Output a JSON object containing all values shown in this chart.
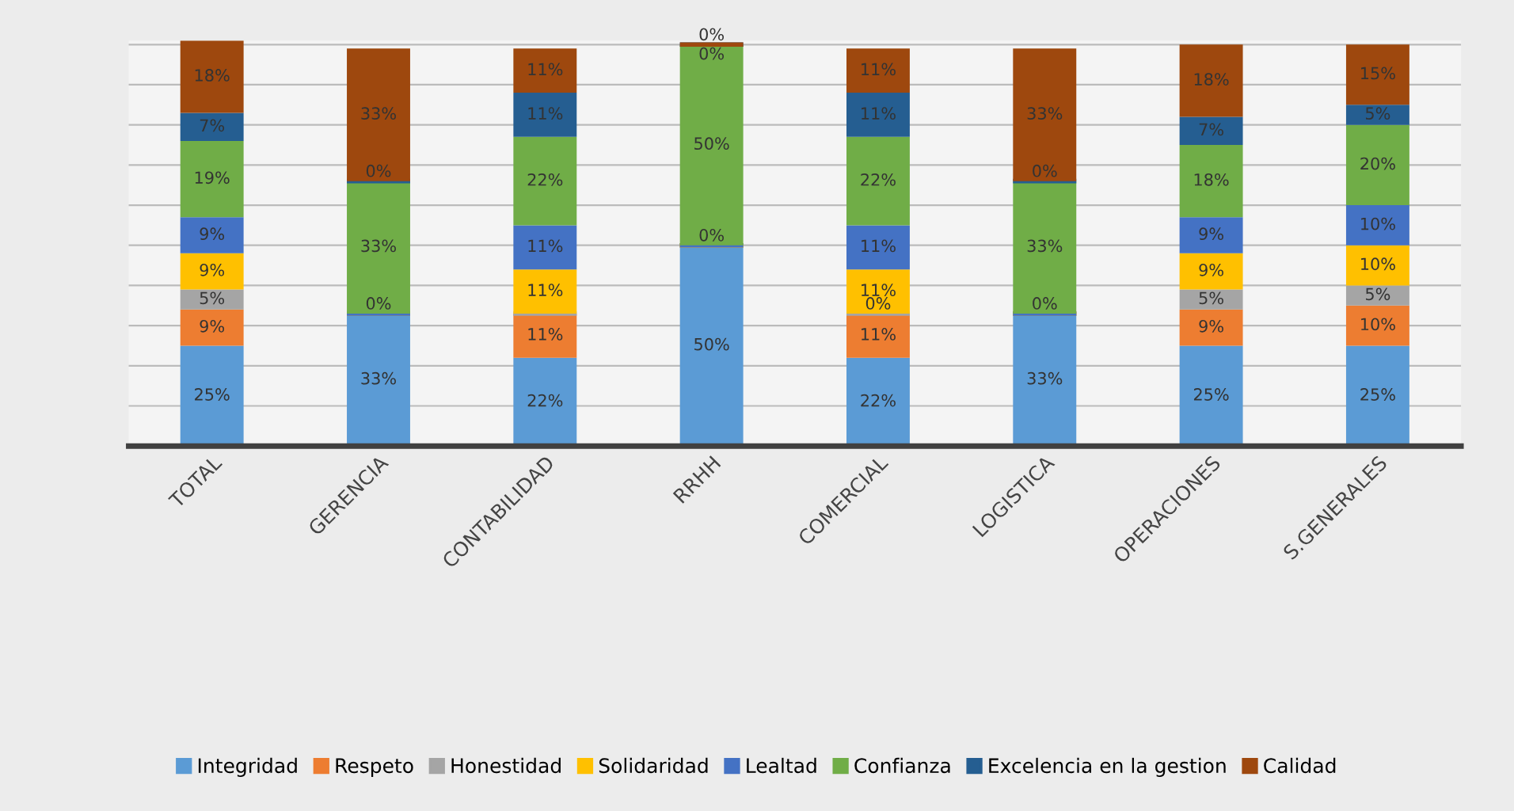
{
  "chart_data": {
    "type": "bar",
    "stacked": true,
    "categories": [
      "TOTAL",
      "GERENCIA",
      "CONTABILIDAD",
      "RRHH",
      "COMERCIAL",
      "LOGISTICA",
      "OPERACIONES",
      "S.GENERALES"
    ],
    "series": [
      {
        "name": "Integridad",
        "color": "#5b9bd5",
        "values": [
          25,
          33,
          22,
          50,
          22,
          33,
          25,
          25
        ],
        "value_labels": [
          "25%",
          "33%",
          "22%",
          "50%",
          "22%",
          "33%",
          "25%",
          "25%"
        ]
      },
      {
        "name": "Respeto",
        "color": "#ed7d31",
        "values": [
          9,
          0,
          11,
          0,
          11,
          0,
          9,
          10
        ],
        "value_labels": [
          "9%",
          "0%",
          "11%",
          "0%",
          "11%",
          "0%",
          "9%",
          "10%"
        ]
      },
      {
        "name": "Honestidad",
        "color": "#a5a5a5",
        "values": [
          5,
          0,
          0,
          0,
          0,
          0,
          5,
          5
        ],
        "value_labels": [
          "5%",
          null,
          null,
          null,
          "0%",
          null,
          "5%",
          "5%"
        ]
      },
      {
        "name": "Solidaridad",
        "color": "#ffc000",
        "values": [
          9,
          0,
          11,
          0,
          11,
          0,
          9,
          10
        ],
        "value_labels": [
          "9%",
          null,
          "11%",
          null,
          "11%",
          null,
          "9%",
          "10%"
        ]
      },
      {
        "name": "Lealtad",
        "color": "#4472c4",
        "values": [
          9,
          0,
          11,
          0,
          11,
          0,
          9,
          10
        ],
        "value_labels": [
          "9%",
          null,
          "11%",
          null,
          "11%",
          null,
          "9%",
          "10%"
        ]
      },
      {
        "name": "Confianza",
        "color": "#70ad47",
        "values": [
          19,
          33,
          22,
          50,
          22,
          33,
          18,
          20
        ],
        "value_labels": [
          "19%",
          "33%",
          "22%",
          "50%",
          "22%",
          "33%",
          "18%",
          "20%"
        ]
      },
      {
        "name": "Excelencia en la gestion",
        "color": "#255e91",
        "values": [
          7,
          0,
          11,
          0,
          11,
          0,
          7,
          5
        ],
        "value_labels": [
          "7%",
          "0%",
          "11%",
          "0%",
          "11%",
          "0%",
          "7%",
          "5%"
        ]
      },
      {
        "name": "Calidad",
        "color": "#9e480e",
        "values": [
          18,
          33,
          11,
          0,
          11,
          33,
          18,
          15
        ],
        "value_labels": [
          "18%",
          "33%",
          "11%",
          "0%",
          "11%",
          "33%",
          "18%",
          "15%"
        ]
      }
    ],
    "ylim": [
      0,
      101
    ],
    "yticks": [
      0,
      10,
      20,
      30,
      40,
      50,
      60,
      70,
      80,
      90,
      100
    ],
    "tick_labels": "x",
    "grid": "y",
    "legend": "bottom"
  }
}
